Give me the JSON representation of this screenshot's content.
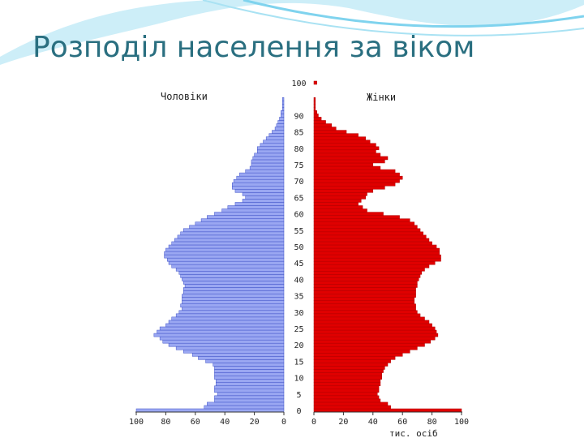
{
  "slide": {
    "title": "Розподіл населення за віком",
    "colors": {
      "title": "#2a6f80",
      "accent_wave": "#7fd3ee"
    }
  },
  "chart_data": {
    "type": "bar",
    "orientation": "horizontal-pyramid",
    "left_label": "Чоловіки",
    "right_label": "Жінки",
    "x_unit_label": "тис. осіб",
    "age_ticks": [
      0,
      5,
      10,
      15,
      20,
      25,
      30,
      35,
      40,
      45,
      50,
      55,
      60,
      65,
      70,
      75,
      80,
      85,
      90,
      100
    ],
    "axis_ticks_men": [
      100,
      80,
      60,
      40,
      20,
      0
    ],
    "axis_ticks_women": [
      0,
      20,
      40,
      60,
      80,
      100
    ],
    "xlim": [
      0,
      100
    ],
    "ylim": [
      0,
      100
    ],
    "grid": false,
    "legend": "none",
    "series": [
      {
        "name": "Чоловіки",
        "color": "#9aa7f2",
        "edge_color": "#3f52c8",
        "values": [
          100,
          54,
          52,
          47,
          47,
          45,
          47,
          47,
          46,
          46,
          47,
          47,
          47,
          47,
          48,
          53,
          58,
          62,
          68,
          73,
          78,
          82,
          84,
          88,
          86,
          84,
          80,
          78,
          76,
          73,
          71,
          69,
          70,
          69,
          69,
          69,
          68,
          68,
          67,
          68,
          69,
          70,
          71,
          73,
          76,
          78,
          79,
          81,
          81,
          80,
          78,
          76,
          74,
          72,
          70,
          68,
          64,
          60,
          56,
          52,
          47,
          42,
          38,
          33,
          28,
          26,
          28,
          33,
          35,
          35,
          34,
          32,
          30,
          26,
          23,
          22,
          22,
          21,
          20,
          18,
          18,
          16,
          14,
          12,
          10,
          8,
          6,
          5,
          4,
          3,
          2,
          2,
          1,
          1,
          1,
          1,
          0,
          0,
          0,
          0,
          0
        ]
      },
      {
        "name": "Жінки",
        "color": "#e00000",
        "edge_color": "#b00000",
        "values": [
          100,
          52,
          50,
          45,
          44,
          43,
          44,
          44,
          45,
          45,
          46,
          46,
          47,
          48,
          50,
          52,
          55,
          60,
          65,
          70,
          75,
          79,
          82,
          84,
          83,
          82,
          80,
          78,
          75,
          72,
          70,
          69,
          69,
          68,
          68,
          69,
          69,
          69,
          70,
          70,
          71,
          72,
          73,
          75,
          78,
          82,
          86,
          86,
          85,
          85,
          83,
          80,
          78,
          76,
          74,
          72,
          70,
          68,
          65,
          58,
          47,
          36,
          33,
          30,
          32,
          35,
          36,
          40,
          48,
          55,
          58,
          60,
          58,
          55,
          45,
          40,
          48,
          50,
          45,
          42,
          44,
          42,
          38,
          35,
          30,
          22,
          15,
          12,
          8,
          5,
          3,
          2,
          1,
          1,
          1,
          1,
          0,
          0,
          0,
          0,
          2
        ]
      }
    ]
  }
}
